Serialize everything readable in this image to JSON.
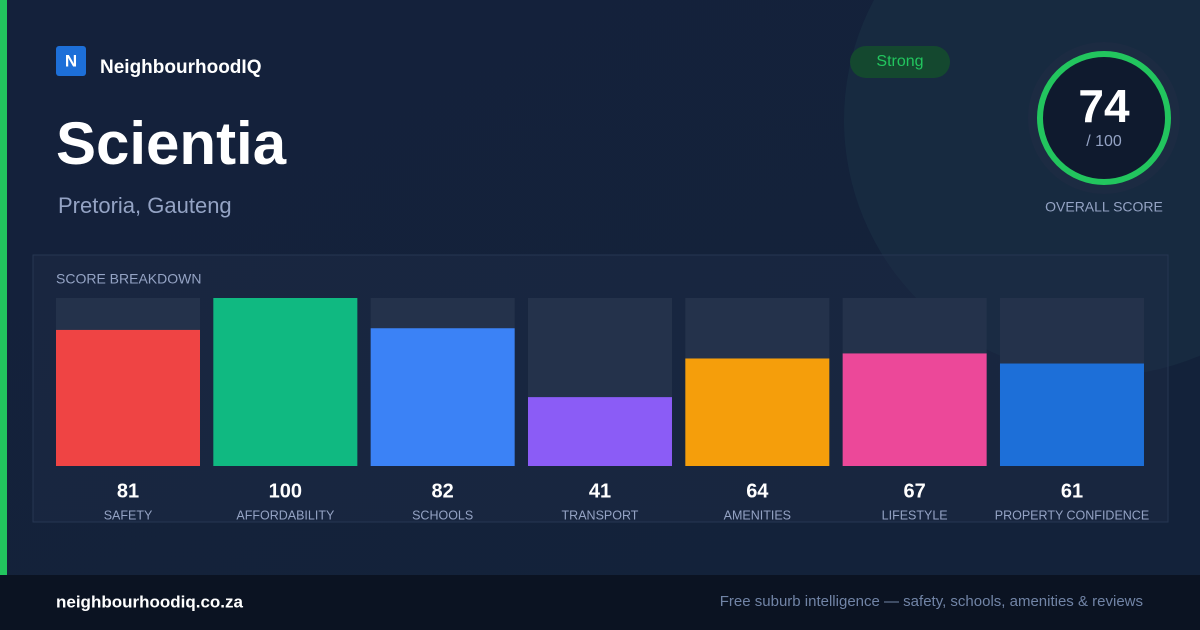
{
  "brand": {
    "logo": "N",
    "name": "NeighbourhoodIQ"
  },
  "title": "Scientia",
  "location": "Pretoria, Gauteng",
  "badge": "Strong",
  "overall": {
    "score": 74,
    "out_of": "/ 100",
    "label": "OVERALL SCORE"
  },
  "chart_data": {
    "type": "bar",
    "title": "SCORE BREAKDOWN",
    "categories": [
      "SAFETY",
      "AFFORDABILITY",
      "SCHOOLS",
      "TRANSPORT",
      "AMENITIES",
      "LIFESTYLE",
      "PROPERTY CONFIDENCE"
    ],
    "values": [
      81,
      100,
      82,
      41,
      64,
      67,
      61
    ],
    "colors": [
      "#ef4444",
      "#10b981",
      "#3b82f6",
      "#8b5cf6",
      "#f59e0b",
      "#ec4899",
      "#1d6fd8"
    ],
    "ylim": [
      0,
      100
    ]
  },
  "footer": {
    "site": "neighbourhoodiq.co.za",
    "tagline": "Free suburb intelligence — safety, schools, amenities & reviews"
  }
}
